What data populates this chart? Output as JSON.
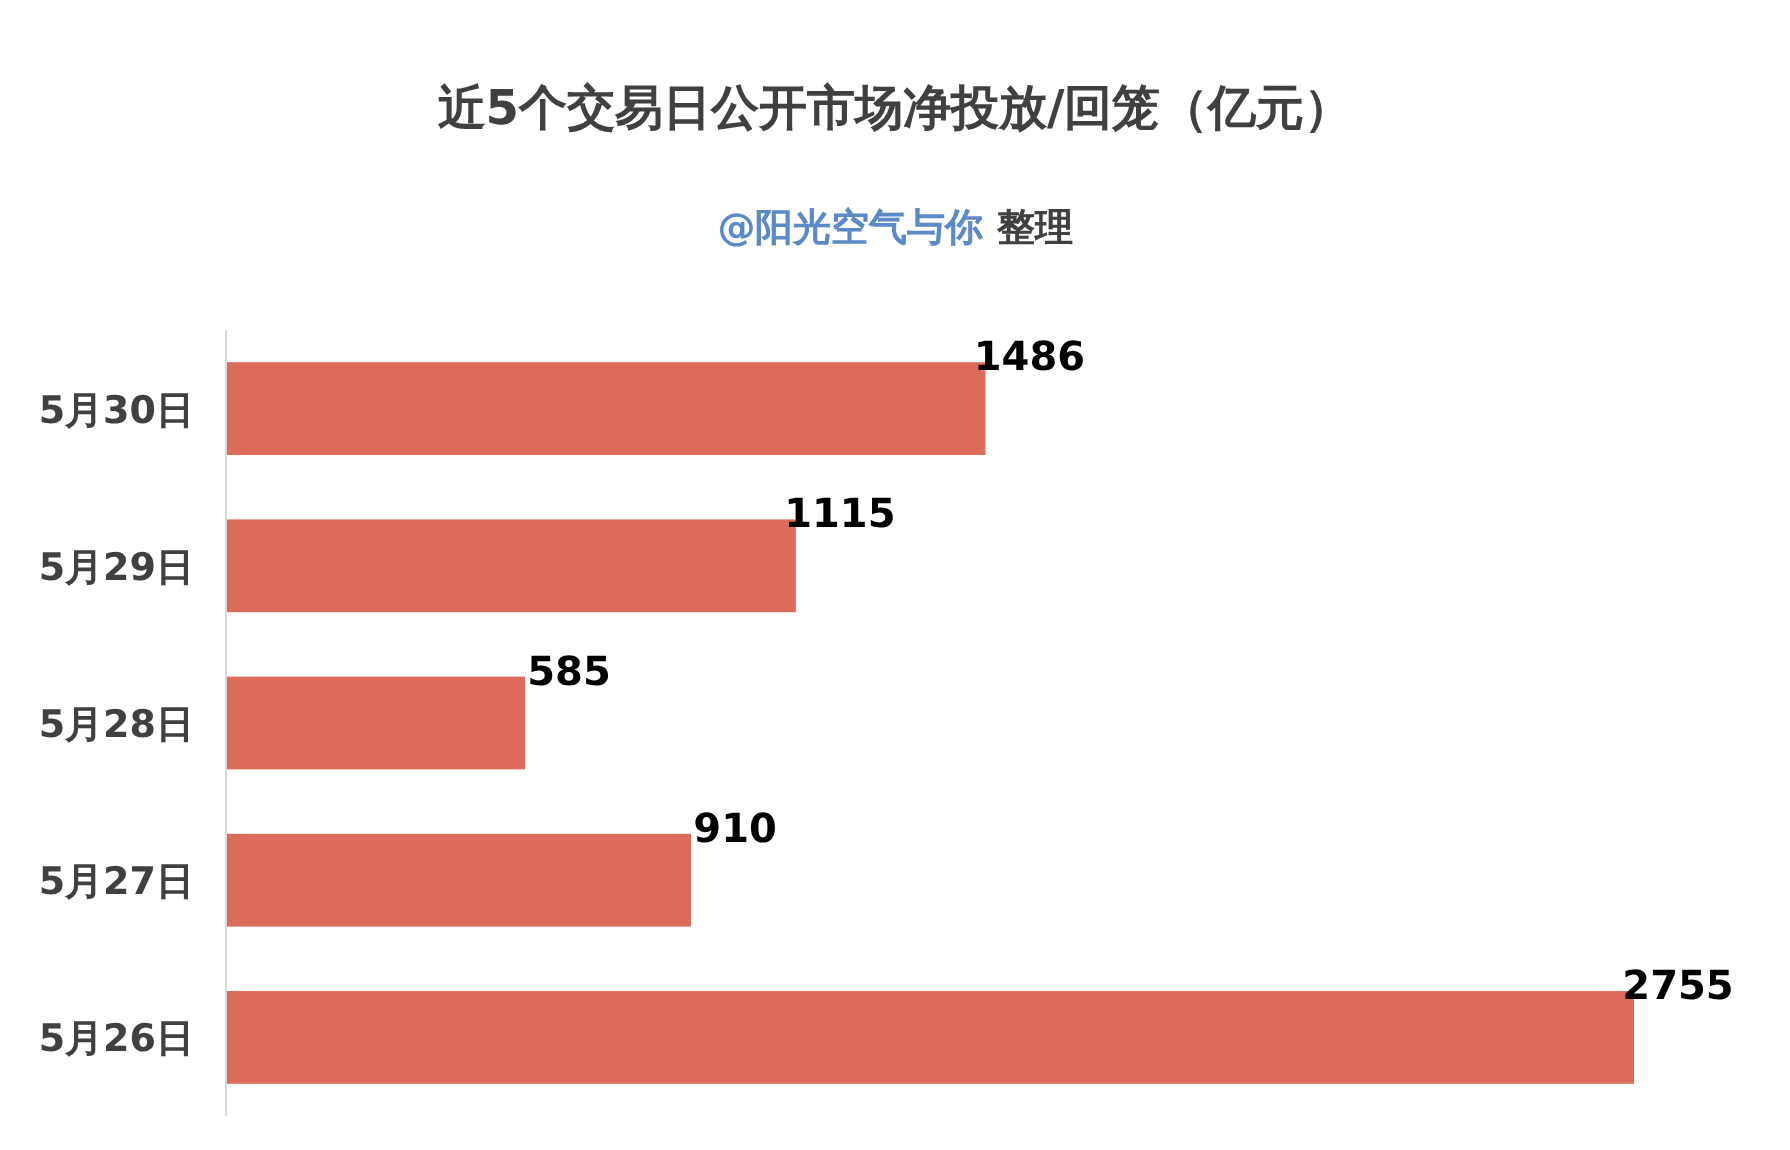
{
  "chart_data": {
    "type": "bar",
    "orientation": "horizontal",
    "title": "近5个交易日公开市场净投放/回笼（亿元）",
    "subtitle": "@阳光空气与你 整理",
    "categories": [
      "5月30日",
      "5月29日",
      "5月28日",
      "5月27日",
      "5月26日"
    ],
    "values": [
      1486,
      1115,
      585,
      910,
      2755
    ],
    "color": "#dd6b5b",
    "data_labels": true
  }
}
